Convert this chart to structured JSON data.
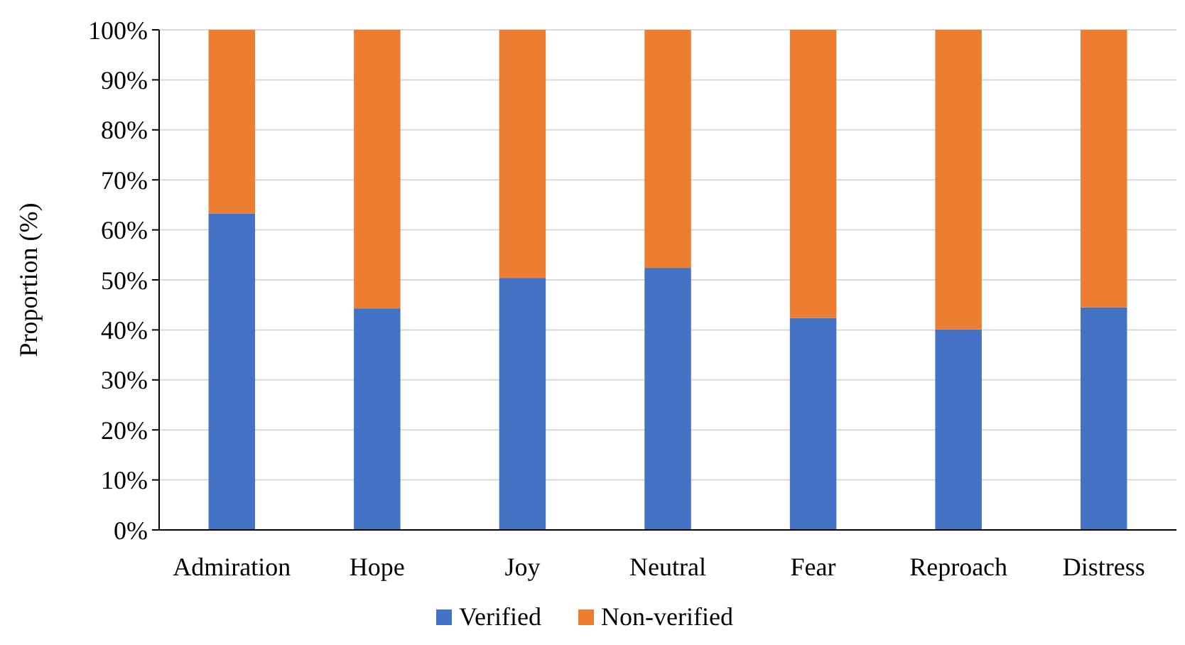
{
  "chart_data": {
    "type": "bar",
    "stacked": true,
    "ylabel": "Proportion (%)",
    "categories": [
      "Admiration",
      "Hope",
      "Joy",
      "Neutral",
      "Fear",
      "Reproach",
      "Distress"
    ],
    "series": [
      {
        "name": "Verified",
        "color": "#4472c4",
        "values": [
          63.3,
          44.3,
          50.4,
          52.4,
          42.4,
          40.1,
          44.5
        ]
      },
      {
        "name": "Non-verified",
        "color": "#ed7d31",
        "values": [
          36.7,
          55.7,
          49.6,
          47.6,
          57.6,
          59.9,
          55.5
        ]
      }
    ],
    "ylim": [
      0,
      100
    ],
    "yticks": [
      {
        "value": 0,
        "label": "0%"
      },
      {
        "value": 10,
        "label": "10%"
      },
      {
        "value": 20,
        "label": "20%"
      },
      {
        "value": 30,
        "label": "30%"
      },
      {
        "value": 40,
        "label": "40%"
      },
      {
        "value": 50,
        "label": "50%"
      },
      {
        "value": 60,
        "label": "60%"
      },
      {
        "value": 70,
        "label": "70%"
      },
      {
        "value": 80,
        "label": "80%"
      },
      {
        "value": 90,
        "label": "90%"
      },
      {
        "value": 100,
        "label": "100%"
      }
    ],
    "grid": "y",
    "legend": "bottom"
  }
}
